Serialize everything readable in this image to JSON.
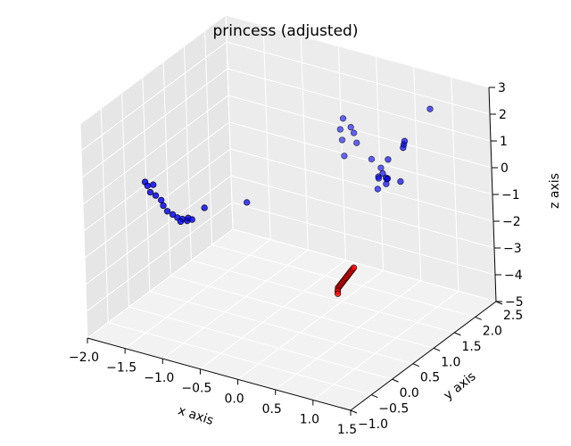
{
  "chart_data": {
    "type": "scatter",
    "projection": "3d",
    "title": "princess (adjusted)",
    "xlabel": "x axis",
    "ylabel": "y axis",
    "zlabel": "z axis",
    "xlim": [
      -2.0,
      1.5
    ],
    "ylim": [
      -1.0,
      2.5
    ],
    "zlim": [
      -5,
      3
    ],
    "x_ticks": [
      "−2.0",
      "−1.5",
      "−1.0",
      "−0.5",
      "0.0",
      "0.5",
      "1.0",
      "1.5"
    ],
    "y_ticks": [
      "−1.0",
      "−0.5",
      "0.0",
      "0.5",
      "1.0",
      "1.5",
      "2.0",
      "2.5"
    ],
    "z_ticks": [
      "−5",
      "−4",
      "−3",
      "−2",
      "−1",
      "0",
      "1",
      "2",
      "3"
    ],
    "grid": true,
    "legend": "none",
    "colors": {
      "series_blue": "#0000ff",
      "series_red": "#ff0000",
      "pane_back": "#ececec",
      "pane_side": "#e6e6e6",
      "pane_floor": "#f2f2f2",
      "grid": "#ffffff"
    },
    "series": [
      {
        "color": "#0000ff",
        "points": [
          [
            -1.9,
            0.3,
            -0.6
          ],
          [
            -1.88,
            0.32,
            -0.75
          ],
          [
            -1.84,
            0.31,
            -0.95
          ],
          [
            -1.78,
            0.33,
            -1.05
          ],
          [
            -1.72,
            0.35,
            -1.2
          ],
          [
            -1.7,
            0.36,
            -1.4
          ],
          [
            -1.66,
            0.38,
            -1.6
          ],
          [
            -1.6,
            0.4,
            -1.7
          ],
          [
            -1.55,
            0.42,
            -1.8
          ],
          [
            -1.5,
            0.45,
            -1.85
          ],
          [
            -1.52,
            0.44,
            -1.95
          ],
          [
            -1.45,
            0.47,
            -1.9
          ],
          [
            -1.44,
            0.48,
            -1.8
          ],
          [
            -1.4,
            0.5,
            -1.85
          ],
          [
            -1.82,
            0.35,
            -0.7
          ],
          [
            -1.2,
            0.45,
            -1.2
          ],
          [
            -1.0,
            1.1,
            -1.6
          ],
          [
            -0.3,
            2.2,
            -0.6
          ],
          [
            -0.35,
            2.25,
            -0.1
          ],
          [
            -0.4,
            2.3,
            0.2
          ],
          [
            -0.3,
            2.2,
            0.8
          ],
          [
            -0.2,
            2.2,
            0.55
          ],
          [
            -0.15,
            2.18,
            0.4
          ],
          [
            -0.1,
            2.15,
            0.1
          ],
          [
            0.15,
            2.05,
            -0.2
          ],
          [
            0.3,
            2.0,
            -0.35
          ],
          [
            0.32,
            1.9,
            -0.55
          ],
          [
            0.38,
            1.8,
            -0.45
          ],
          [
            0.42,
            1.7,
            -0.7
          ],
          [
            0.55,
            1.6,
            0.1
          ],
          [
            0.6,
            1.65,
            0.6
          ],
          [
            0.62,
            1.55,
            0.05
          ],
          [
            0.65,
            1.5,
            -0.1
          ],
          [
            0.7,
            1.45,
            0.2
          ],
          [
            0.72,
            1.4,
            0.25
          ],
          [
            0.95,
            1.4,
            1.6
          ],
          [
            0.95,
            1.42,
            1.7
          ],
          [
            0.95,
            1.44,
            1.8
          ],
          [
            0.9,
            1.4,
            0.3
          ],
          [
            1.1,
            1.8,
            2.7
          ]
        ]
      },
      {
        "color": "#ff0000",
        "points": [
          [
            0.5,
            0.55,
            -3.0
          ],
          [
            0.51,
            0.56,
            -2.95
          ],
          [
            0.52,
            0.57,
            -2.9
          ],
          [
            0.53,
            0.58,
            -2.85
          ],
          [
            0.54,
            0.59,
            -2.8
          ],
          [
            0.55,
            0.6,
            -2.75
          ],
          [
            0.56,
            0.61,
            -2.7
          ],
          [
            0.57,
            0.62,
            -2.65
          ],
          [
            0.58,
            0.63,
            -2.6
          ],
          [
            0.59,
            0.64,
            -2.55
          ],
          [
            0.6,
            0.65,
            -2.5
          ],
          [
            0.61,
            0.66,
            -2.45
          ],
          [
            0.62,
            0.67,
            -2.4
          ],
          [
            0.63,
            0.68,
            -2.35
          ],
          [
            0.64,
            0.69,
            -2.3
          ],
          [
            0.5,
            0.54,
            -3.1
          ],
          [
            0.5,
            0.54,
            -3.2
          ]
        ]
      }
    ]
  }
}
